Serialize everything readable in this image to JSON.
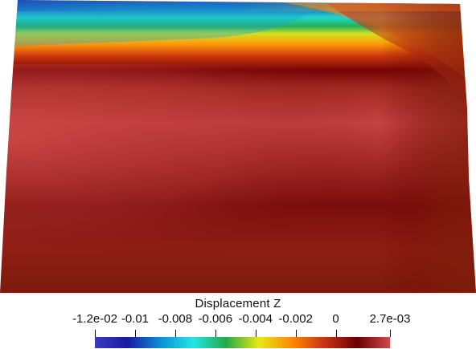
{
  "legend": {
    "title": "Displacement Z",
    "range": {
      "min": -0.012,
      "max": 0.0027
    },
    "ticks": [
      {
        "value": -0.012,
        "label": "-1.2e-02"
      },
      {
        "value": -0.01,
        "label": "-0.01"
      },
      {
        "value": -0.008,
        "label": "-0.008"
      },
      {
        "value": -0.006,
        "label": "-0.006"
      },
      {
        "value": -0.004,
        "label": "-0.004"
      },
      {
        "value": -0.002,
        "label": "-0.002"
      },
      {
        "value": 0,
        "label": "0"
      },
      {
        "value": 0.0027,
        "label": "2.7e-03"
      }
    ],
    "colormap": [
      "#3b3bbd",
      "#1a1aa0",
      "#0a8fd8",
      "#22e6e6",
      "#22aa44",
      "#e8e818",
      "#ff8800",
      "#c83214",
      "#6a0000",
      "#d24a4a"
    ]
  }
}
